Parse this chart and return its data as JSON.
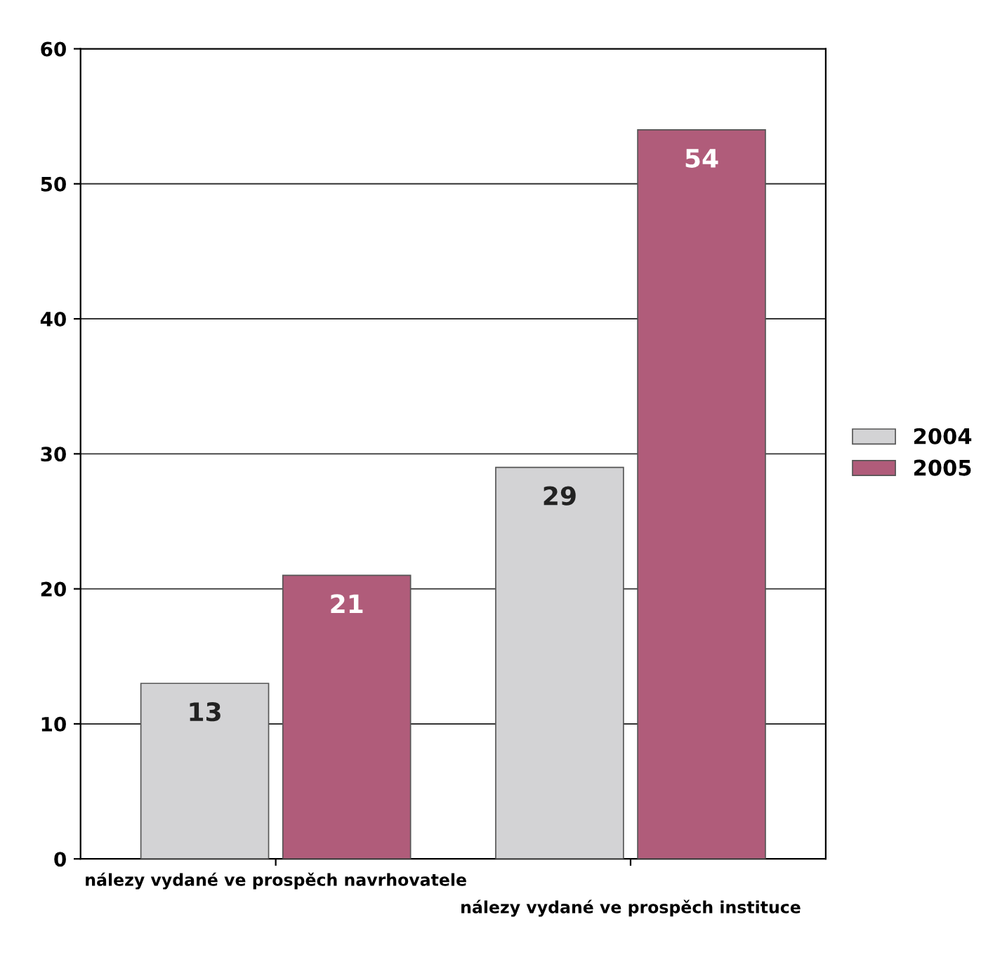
{
  "chart_data": {
    "type": "bar",
    "categories": [
      "nálezy vydané ve prospěch navrhovatele",
      "nálezy vydané ve prospěch instituce"
    ],
    "series": [
      {
        "name": "2004",
        "color": "#d3d3d5",
        "values": [
          13,
          29
        ]
      },
      {
        "name": "2005",
        "color": "#b05c7a",
        "values": [
          21,
          54
        ]
      }
    ],
    "ylim": [
      0,
      60
    ],
    "yticks": [
      0,
      10,
      20,
      30,
      40,
      50,
      60
    ],
    "grid": "y",
    "data_labels": true,
    "legend": "right"
  }
}
